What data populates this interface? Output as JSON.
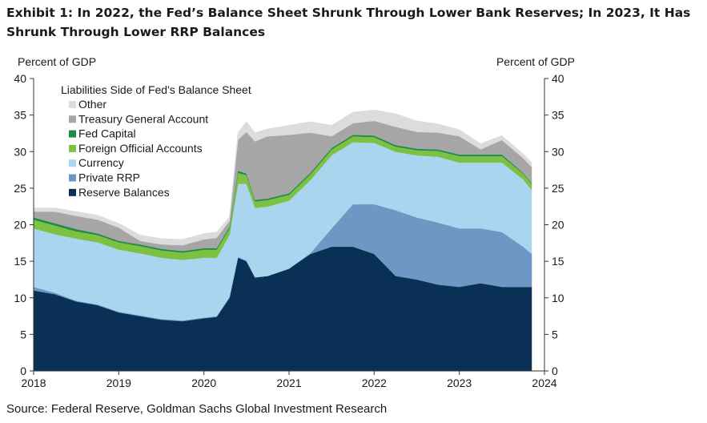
{
  "title": "Exhibit 1: In 2022, the Fed’s Balance Sheet Shrunk Through Lower Bank Reserves; In 2023, It Has Shrunk Through Lower RRP Balances",
  "source": "Source: Federal Reserve, Goldman Sachs Global Investment Research",
  "chart_data": {
    "type": "area",
    "stacked": true,
    "title": "Liabilities Side of Fed's Balance Sheet",
    "ylabel_left": "Percent of GDP",
    "ylabel_right": "Percent of GDP",
    "ylim": [
      0,
      40
    ],
    "yticks": [
      0,
      5,
      10,
      15,
      20,
      25,
      30,
      35,
      40
    ],
    "xlim": [
      2018,
      2024
    ],
    "xticks": [
      2018,
      2019,
      2020,
      2021,
      2022,
      2023,
      2024
    ],
    "legend_position": "top-left",
    "x": [
      2018.0,
      2018.25,
      2018.5,
      2018.75,
      2019.0,
      2019.25,
      2019.5,
      2019.75,
      2020.0,
      2020.15,
      2020.3,
      2020.4,
      2020.5,
      2020.6,
      2020.75,
      2021.0,
      2021.25,
      2021.5,
      2021.75,
      2022.0,
      2022.25,
      2022.5,
      2022.75,
      2023.0,
      2023.25,
      2023.5,
      2023.75,
      2023.85
    ],
    "series": [
      {
        "name": "Reserve Balances",
        "color": "#0b3055",
        "values": [
          11.0,
          10.5,
          9.5,
          9.0,
          8.0,
          7.5,
          7.0,
          6.8,
          7.2,
          7.4,
          10.0,
          15.5,
          15.0,
          12.8,
          13.0,
          14.0,
          16.0,
          17.0,
          17.0,
          16.0,
          13.0,
          12.5,
          11.8,
          11.5,
          12.0,
          11.5,
          11.5,
          11.5
        ]
      },
      {
        "name": "Private RRP",
        "color": "#6f97c4",
        "values": [
          0.5,
          0.2,
          0.1,
          0.1,
          0.1,
          0.1,
          0.1,
          0.1,
          0.1,
          0.1,
          0.1,
          0.1,
          0.1,
          0.0,
          0.0,
          0.0,
          0.1,
          2.5,
          5.8,
          6.8,
          9.0,
          8.5,
          8.5,
          8.0,
          7.5,
          7.5,
          5.5,
          4.5
        ]
      },
      {
        "name": "Currency",
        "color": "#abd4ee",
        "values": [
          8.0,
          8.0,
          8.5,
          8.5,
          8.5,
          8.5,
          8.4,
          8.3,
          8.2,
          8.0,
          8.5,
          10.0,
          10.5,
          9.5,
          9.5,
          9.3,
          10.0,
          10.0,
          8.5,
          8.4,
          8.0,
          8.5,
          9.0,
          9.0,
          9.0,
          9.5,
          9.2,
          8.8
        ]
      },
      {
        "name": "Foreign Official Accounts",
        "color": "#7dc142",
        "values": [
          1.2,
          1.2,
          1.0,
          1.0,
          1.0,
          1.0,
          1.0,
          1.0,
          1.1,
          1.1,
          0.9,
          1.5,
          1.2,
          0.9,
          0.9,
          0.8,
          0.8,
          0.8,
          0.8,
          0.8,
          0.7,
          0.7,
          0.8,
          0.9,
          0.9,
          0.9,
          0.8,
          0.8
        ]
      },
      {
        "name": "Fed Capital",
        "color": "#1f8a4a",
        "values": [
          0.3,
          0.3,
          0.3,
          0.2,
          0.2,
          0.2,
          0.2,
          0.2,
          0.2,
          0.2,
          0.2,
          0.3,
          0.2,
          0.2,
          0.2,
          0.2,
          0.2,
          0.2,
          0.2,
          0.2,
          0.2,
          0.2,
          0.2,
          0.2,
          0.2,
          0.2,
          0.1,
          0.1
        ]
      },
      {
        "name": "Treasury  General Account",
        "color": "#a6a6a6",
        "values": [
          0.8,
          1.6,
          1.8,
          1.9,
          1.8,
          0.5,
          0.6,
          0.8,
          1.2,
          1.4,
          0.8,
          4.2,
          5.7,
          8.0,
          8.5,
          8.0,
          5.5,
          1.6,
          1.6,
          2.0,
          2.5,
          2.3,
          2.3,
          2.5,
          0.7,
          2.0,
          2.0,
          2.2
        ]
      },
      {
        "name": "Other",
        "color": "#dcdcdc",
        "values": [
          0.5,
          0.5,
          0.6,
          0.6,
          0.6,
          0.8,
          0.8,
          0.8,
          0.8,
          0.8,
          0.6,
          1.0,
          1.4,
          1.2,
          1.0,
          1.3,
          1.5,
          1.5,
          1.5,
          1.5,
          1.8,
          1.5,
          1.2,
          0.9,
          0.8,
          0.6,
          0.6,
          0.6
        ]
      }
    ]
  }
}
